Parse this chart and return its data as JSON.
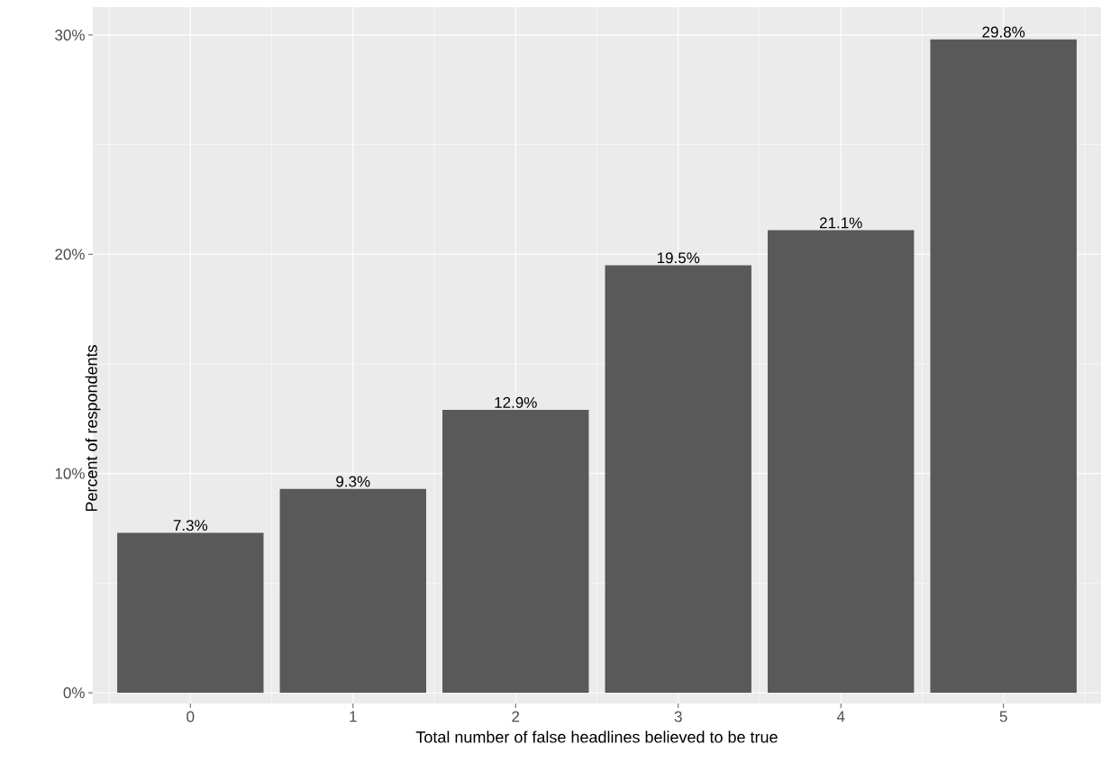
{
  "chart_data": {
    "type": "bar",
    "xlabel": "Total number of false headlines believed to be true",
    "ylabel": "Percent of respondents",
    "categories": [
      "0",
      "1",
      "2",
      "3",
      "4",
      "5"
    ],
    "values": [
      7.3,
      9.3,
      12.9,
      19.5,
      21.1,
      29.8
    ],
    "value_labels": [
      "7.3%",
      "9.3%",
      "12.9%",
      "19.5%",
      "21.1%",
      "29.8%"
    ],
    "color": "#595959",
    "ylim": [
      -0.49,
      31.27
    ],
    "yticks": [
      {
        "value": 0,
        "label": "0%"
      },
      {
        "value": 10,
        "label": "10%"
      },
      {
        "value": 20,
        "label": "20%"
      },
      {
        "value": 30,
        "label": "30%"
      }
    ],
    "grid": true
  }
}
